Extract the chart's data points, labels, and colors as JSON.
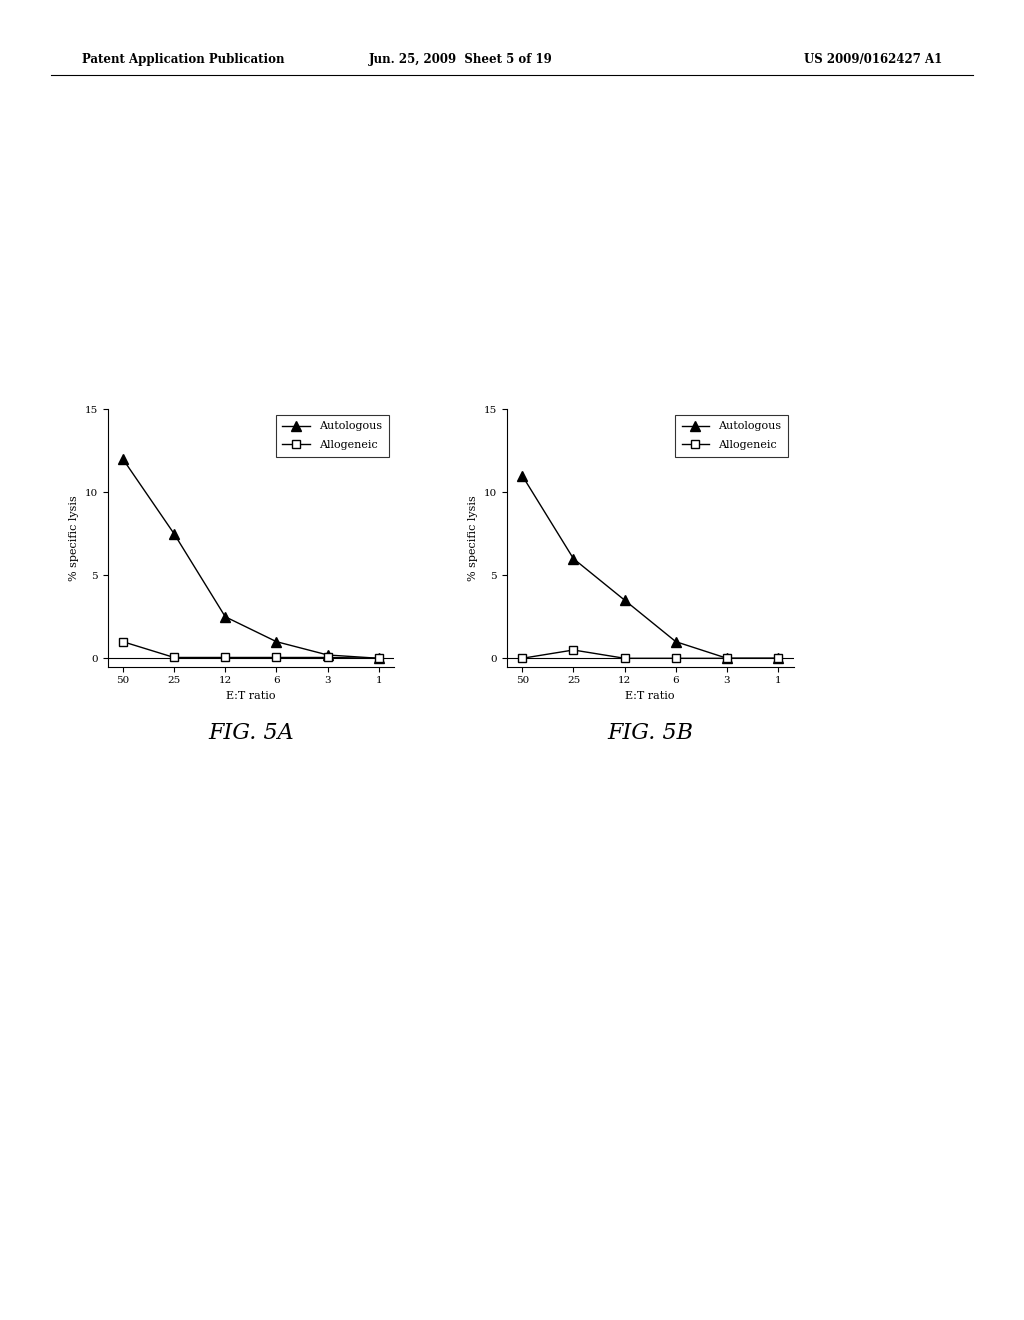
{
  "header_left": "Patent Application Publication",
  "header_center": "Jun. 25, 2009  Sheet 5 of 19",
  "header_right": "US 2009/0162427 A1",
  "fig5a": {
    "title": "FIG. 5A",
    "x_labels": [
      "50",
      "25",
      "12",
      "6",
      "3",
      "1"
    ],
    "x_values": [
      0,
      1,
      2,
      3,
      4,
      5
    ],
    "autologous": [
      12,
      7.5,
      2.5,
      1.0,
      0.2,
      0.0
    ],
    "allogeneic": [
      1.0,
      0.05,
      0.05,
      0.05,
      0.05,
      0.0
    ],
    "xlabel": "E:T ratio",
    "ylabel": "% specific lysis",
    "ylim": [
      -0.5,
      15
    ],
    "yticks": [
      0,
      5,
      10,
      15
    ]
  },
  "fig5b": {
    "title": "FIG. 5B",
    "x_labels": [
      "50",
      "25",
      "12",
      "6",
      "3",
      "1"
    ],
    "x_values": [
      0,
      1,
      2,
      3,
      4,
      5
    ],
    "autologous": [
      11,
      6.0,
      3.5,
      1.0,
      0.0,
      0.0
    ],
    "allogeneic": [
      0.0,
      0.5,
      0.0,
      0.0,
      0.0,
      0.0
    ],
    "xlabel": "E:T ratio",
    "ylabel": "% specific lysis",
    "ylim": [
      -0.5,
      15
    ],
    "yticks": [
      0,
      5,
      10,
      15
    ]
  },
  "legend_autologous": "Autologous",
  "legend_allogeneic": "Allogeneic",
  "background_color": "#ffffff",
  "header_fontsize": 8.5,
  "label_fontsize": 8,
  "tick_fontsize": 7.5,
  "fig_label_fontsize": 16
}
